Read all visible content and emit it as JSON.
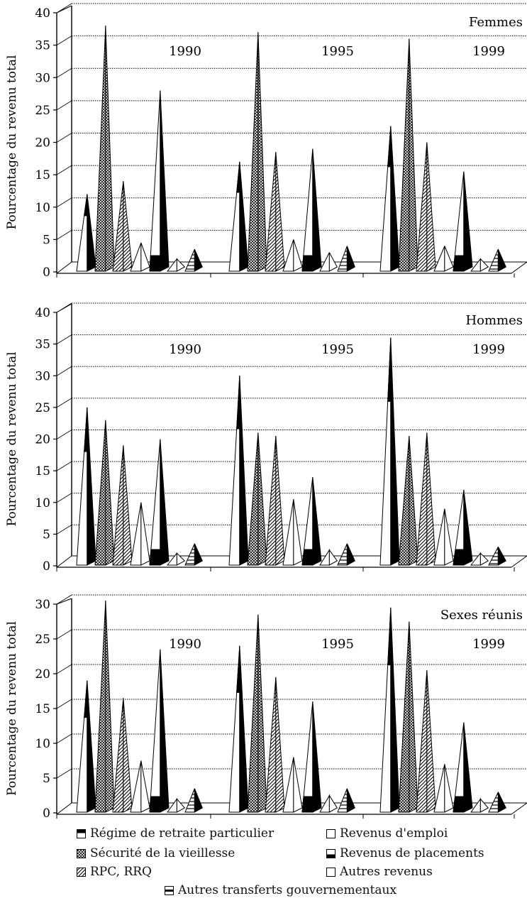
{
  "colors": {
    "ink": "#000000",
    "paper": "#ffffff",
    "gridline": "#000000"
  },
  "chart_data": [
    {
      "type": "bar",
      "panel_label": "Femmes",
      "ylabel": "Pourcentage du revenu total",
      "ylim": [
        0,
        40
      ],
      "yticks": [
        0,
        5,
        10,
        15,
        20,
        25,
        30,
        35,
        40
      ],
      "categories": [
        "1990",
        "1995",
        "1999"
      ],
      "series": [
        {
          "name": "Régime de retraite particulier",
          "values": [
            12,
            17,
            22.5
          ]
        },
        {
          "name": "Sécurité de la vieillesse",
          "values": [
            38,
            37,
            36
          ]
        },
        {
          "name": "RPC, RRQ",
          "values": [
            14,
            18.5,
            20
          ]
        },
        {
          "name": "Revenus d'emploi",
          "values": [
            4.5,
            5,
            4
          ]
        },
        {
          "name": "Revenus de placements",
          "values": [
            28,
            19,
            15.5
          ]
        },
        {
          "name": "Autres revenus",
          "values": [
            2,
            3,
            2
          ]
        },
        {
          "name": "Autres transferts gouvernementaux",
          "values": [
            3.5,
            4,
            3.5
          ]
        }
      ]
    },
    {
      "type": "bar",
      "panel_label": "Hommes",
      "ylabel": "Pourcentage du revenu total",
      "ylim": [
        0,
        40
      ],
      "yticks": [
        0,
        5,
        10,
        15,
        20,
        25,
        30,
        35,
        40
      ],
      "categories": [
        "1990",
        "1995",
        "1999"
      ],
      "series": [
        {
          "name": "Régime de retraite particulier",
          "values": [
            25,
            30,
            36
          ]
        },
        {
          "name": "Sécurité de la vieillesse",
          "values": [
            23,
            21,
            20.5
          ]
        },
        {
          "name": "RPC, RRQ",
          "values": [
            19,
            20.5,
            21
          ]
        },
        {
          "name": "Revenus d'emploi",
          "values": [
            10,
            10.5,
            9
          ]
        },
        {
          "name": "Revenus de placements",
          "values": [
            20,
            14,
            12
          ]
        },
        {
          "name": "Autres revenus",
          "values": [
            2,
            2.5,
            2
          ]
        },
        {
          "name": "Autres transferts gouvernementaux",
          "values": [
            3.5,
            3.5,
            3
          ]
        }
      ]
    },
    {
      "type": "bar",
      "panel_label": "Sexes réunis",
      "ylabel": "Pourcentage du revenu total",
      "ylim": [
        0,
        30
      ],
      "yticks": [
        0,
        5,
        10,
        15,
        20,
        25,
        30
      ],
      "categories": [
        "1990",
        "1995",
        "1999"
      ],
      "series": [
        {
          "name": "Régime de retraite particulier",
          "values": [
            19,
            24,
            29.5
          ]
        },
        {
          "name": "Sécurité de la vieillesse",
          "values": [
            30.5,
            28.5,
            27.5
          ]
        },
        {
          "name": "RPC, RRQ",
          "values": [
            16.5,
            19.5,
            20.5
          ]
        },
        {
          "name": "Revenus d'emploi",
          "values": [
            7.5,
            8,
            7
          ]
        },
        {
          "name": "Revenus de placements",
          "values": [
            23.5,
            16,
            13
          ]
        },
        {
          "name": "Autres revenus",
          "values": [
            2,
            2.5,
            2
          ]
        },
        {
          "name": "Autres transferts gouvernementaux",
          "values": [
            3.5,
            3.5,
            3
          ]
        }
      ]
    }
  ],
  "legend": [
    {
      "key": "rpp",
      "label": "Régime de retraite particulier"
    },
    {
      "key": "emp",
      "label": "Revenus d'emploi"
    },
    {
      "key": "sv",
      "label": "Sécurité de la vieillesse"
    },
    {
      "key": "plc",
      "label": "Revenus de placements"
    },
    {
      "key": "rpc",
      "label": "RPC, RRQ"
    },
    {
      "key": "aut",
      "label": "Autres revenus"
    },
    {
      "key": "atg",
      "label": "Autres transferts gouvernementaux"
    }
  ]
}
